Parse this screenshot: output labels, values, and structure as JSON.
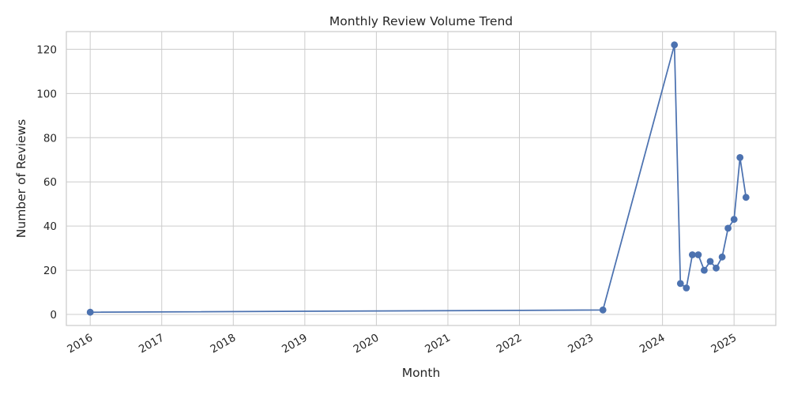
{
  "chart_data": {
    "type": "line",
    "title": "Monthly Review Volume Trend",
    "xlabel": "Month",
    "ylabel": "Number of Reviews",
    "grid": true,
    "legend": "none",
    "color": "#4c72b0",
    "x_ticks": [
      "2016",
      "2017",
      "2018",
      "2019",
      "2020",
      "2021",
      "2022",
      "2023",
      "2024",
      "2025"
    ],
    "y_ticks": [
      0,
      20,
      40,
      60,
      80,
      100,
      120
    ],
    "xlim": [
      "2015-09",
      "2025-08"
    ],
    "ylim": [
      -5,
      128
    ],
    "series": [
      {
        "x": [
          "2016-01",
          "2023-03",
          "2024-03",
          "2024-04",
          "2024-05",
          "2024-06",
          "2024-07",
          "2024-08",
          "2024-09",
          "2024-10",
          "2024-11",
          "2024-12",
          "2025-01",
          "2025-02",
          "2025-03"
        ],
        "values": [
          1,
          2,
          122,
          14,
          12,
          27,
          27,
          20,
          24,
          21,
          26,
          39,
          43,
          71,
          53
        ]
      }
    ]
  }
}
